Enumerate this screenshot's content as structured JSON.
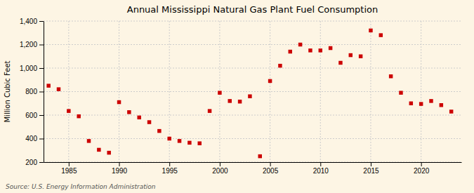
{
  "chart_data": {
    "type": "scatter",
    "title": "Annual Mississippi Natural Gas Plant Fuel Consumption",
    "ylabel": "Million Cubic Feet",
    "annotations": [
      "Source: U.S. Energy Information Administration"
    ],
    "x": [
      1983,
      1984,
      1985,
      1986,
      1987,
      1988,
      1989,
      1990,
      1991,
      1992,
      1993,
      1994,
      1995,
      1996,
      1997,
      1998,
      1999,
      2000,
      2001,
      2002,
      2003,
      2004,
      2005,
      2006,
      2007,
      2008,
      2009,
      2010,
      2011,
      2012,
      2013,
      2014,
      2015,
      2016,
      2017,
      2018,
      2019,
      2020,
      2021,
      2022,
      2023
    ],
    "values": [
      850,
      820,
      635,
      590,
      380,
      305,
      280,
      710,
      625,
      580,
      540,
      465,
      400,
      380,
      365,
      360,
      635,
      790,
      720,
      715,
      760,
      250,
      890,
      1020,
      1140,
      1200,
      1150,
      1150,
      1170,
      1045,
      1110,
      1100,
      1320,
      1280,
      930,
      790,
      700,
      695,
      720,
      685,
      630
    ],
    "color": "#cc0000",
    "marker": "square",
    "grid": true,
    "xlim": [
      1982.5,
      2024
    ],
    "xticks": [
      1985,
      1990,
      1995,
      2000,
      2005,
      2010,
      2015,
      2020
    ],
    "ylim": [
      200,
      1400
    ],
    "yticks": [
      200,
      400,
      600,
      800,
      {
        "value": 1000,
        "label": "1,000"
      },
      {
        "value": 1200,
        "label": "1,200"
      },
      {
        "value": 1400,
        "label": "1,400"
      }
    ]
  }
}
